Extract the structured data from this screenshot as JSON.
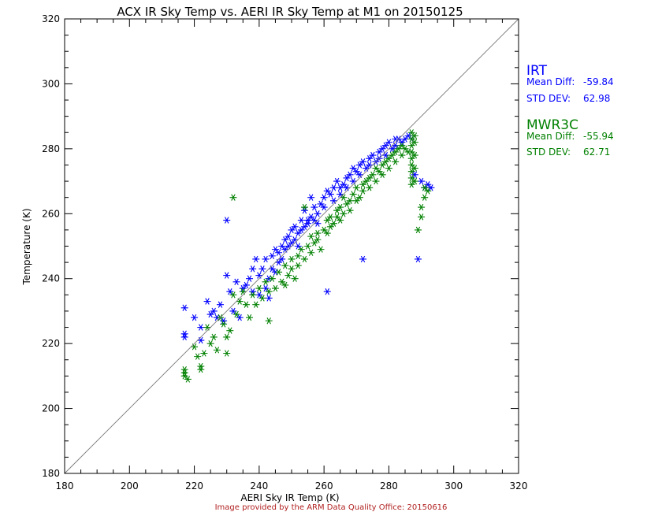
{
  "chart_data": {
    "type": "scatter",
    "title": "ACX IR Sky Temp vs. AERI IR Sky Temp at M1 on 20150125",
    "xlabel": "AERI Sky IR Temp (K)",
    "ylabel": "Temperature (K)",
    "xlim": [
      180,
      320
    ],
    "ylim": [
      180,
      320
    ],
    "xticks": [
      "180",
      "200",
      "220",
      "240",
      "260",
      "280",
      "300",
      "320"
    ],
    "yticks": [
      "180",
      "200",
      "220",
      "240",
      "260",
      "280",
      "300",
      "320"
    ],
    "reference_line": "y = x",
    "marker": "asterisk",
    "grid": false,
    "legend_position": "right",
    "series": [
      {
        "name": "IRT",
        "color": "#0000ff",
        "mean_diff_label": "Mean Diff:",
        "mean_diff": "-59.84",
        "std_dev_label": "STD DEV:",
        "std_dev": "62.98",
        "points": [
          [
            217,
            231
          ],
          [
            217,
            223
          ],
          [
            217,
            222
          ],
          [
            220,
            228
          ],
          [
            222,
            225
          ],
          [
            222,
            221
          ],
          [
            224,
            233
          ],
          [
            225,
            229
          ],
          [
            226,
            230
          ],
          [
            227,
            228
          ],
          [
            228,
            232
          ],
          [
            229,
            227
          ],
          [
            230,
            258
          ],
          [
            230,
            241
          ],
          [
            231,
            236
          ],
          [
            232,
            230
          ],
          [
            233,
            239
          ],
          [
            234,
            228
          ],
          [
            235,
            237
          ],
          [
            236,
            238
          ],
          [
            237,
            240
          ],
          [
            238,
            243
          ],
          [
            238,
            236
          ],
          [
            239,
            246
          ],
          [
            240,
            241
          ],
          [
            240,
            235
          ],
          [
            241,
            243
          ],
          [
            242,
            237
          ],
          [
            242,
            246
          ],
          [
            243,
            234
          ],
          [
            243,
            240
          ],
          [
            244,
            247
          ],
          [
            244,
            243
          ],
          [
            245,
            249
          ],
          [
            245,
            242
          ],
          [
            246,
            248
          ],
          [
            246,
            245
          ],
          [
            247,
            250
          ],
          [
            247,
            246
          ],
          [
            248,
            252
          ],
          [
            248,
            249
          ],
          [
            249,
            253
          ],
          [
            249,
            250
          ],
          [
            250,
            255
          ],
          [
            250,
            251
          ],
          [
            251,
            252
          ],
          [
            251,
            256
          ],
          [
            252,
            254
          ],
          [
            252,
            250
          ],
          [
            253,
            258
          ],
          [
            253,
            255
          ],
          [
            254,
            256
          ],
          [
            254,
            261
          ],
          [
            255,
            258
          ],
          [
            255,
            257
          ],
          [
            256,
            259
          ],
          [
            256,
            265
          ],
          [
            257,
            258
          ],
          [
            257,
            262
          ],
          [
            258,
            260
          ],
          [
            258,
            257
          ],
          [
            259,
            263
          ],
          [
            260,
            262
          ],
          [
            260,
            265
          ],
          [
            261,
            236
          ],
          [
            261,
            267
          ],
          [
            262,
            266
          ],
          [
            263,
            268
          ],
          [
            263,
            264
          ],
          [
            264,
            270
          ],
          [
            265,
            268
          ],
          [
            265,
            266
          ],
          [
            266,
            269
          ],
          [
            267,
            271
          ],
          [
            267,
            268
          ],
          [
            268,
            272
          ],
          [
            269,
            270
          ],
          [
            269,
            274
          ],
          [
            270,
            273
          ],
          [
            271,
            275
          ],
          [
            271,
            272
          ],
          [
            272,
            246
          ],
          [
            272,
            276
          ],
          [
            273,
            274
          ],
          [
            274,
            277
          ],
          [
            274,
            275
          ],
          [
            275,
            278
          ],
          [
            276,
            276
          ],
          [
            277,
            279
          ],
          [
            277,
            277
          ],
          [
            278,
            280
          ],
          [
            279,
            278
          ],
          [
            279,
            281
          ],
          [
            280,
            282
          ],
          [
            281,
            280
          ],
          [
            282,
            283
          ],
          [
            282,
            281
          ],
          [
            283,
            283
          ],
          [
            284,
            282
          ],
          [
            285,
            283
          ],
          [
            286,
            284
          ],
          [
            287,
            283
          ],
          [
            288,
            272
          ],
          [
            289,
            246
          ],
          [
            291,
            268
          ],
          [
            292,
            269
          ],
          [
            293,
            268
          ],
          [
            290,
            270
          ]
        ]
      },
      {
        "name": "MWR3C",
        "color": "#008000",
        "mean_diff_label": "Mean Diff:",
        "mean_diff": "-55.94",
        "std_dev_label": "STD DEV:",
        "std_dev": "62.71",
        "points": [
          [
            217,
            212
          ],
          [
            217,
            210
          ],
          [
            217,
            211
          ],
          [
            218,
            209
          ],
          [
            220,
            219
          ],
          [
            221,
            216
          ],
          [
            222,
            213
          ],
          [
            222,
            212
          ],
          [
            223,
            217
          ],
          [
            224,
            225
          ],
          [
            225,
            220
          ],
          [
            226,
            222
          ],
          [
            227,
            218
          ],
          [
            228,
            228
          ],
          [
            229,
            226
          ],
          [
            230,
            217
          ],
          [
            230,
            222
          ],
          [
            231,
            224
          ],
          [
            232,
            265
          ],
          [
            232,
            235
          ],
          [
            233,
            229
          ],
          [
            234,
            233
          ],
          [
            235,
            236
          ],
          [
            236,
            232
          ],
          [
            237,
            228
          ],
          [
            238,
            235
          ],
          [
            239,
            232
          ],
          [
            240,
            237
          ],
          [
            241,
            234
          ],
          [
            242,
            239
          ],
          [
            243,
            227
          ],
          [
            243,
            236
          ],
          [
            244,
            240
          ],
          [
            245,
            237
          ],
          [
            246,
            242
          ],
          [
            247,
            239
          ],
          [
            248,
            238
          ],
          [
            248,
            244
          ],
          [
            249,
            241
          ],
          [
            250,
            246
          ],
          [
            250,
            243
          ],
          [
            251,
            240
          ],
          [
            252,
            247
          ],
          [
            252,
            244
          ],
          [
            253,
            249
          ],
          [
            254,
            246
          ],
          [
            254,
            262
          ],
          [
            255,
            250
          ],
          [
            256,
            248
          ],
          [
            256,
            253
          ],
          [
            257,
            251
          ],
          [
            258,
            254
          ],
          [
            258,
            252
          ],
          [
            259,
            249
          ],
          [
            260,
            255
          ],
          [
            261,
            258
          ],
          [
            261,
            254
          ],
          [
            262,
            259
          ],
          [
            262,
            256
          ],
          [
            263,
            257
          ],
          [
            264,
            261
          ],
          [
            264,
            259
          ],
          [
            265,
            262
          ],
          [
            265,
            258
          ],
          [
            266,
            260
          ],
          [
            266,
            265
          ],
          [
            267,
            263
          ],
          [
            268,
            264
          ],
          [
            268,
            261
          ],
          [
            269,
            266
          ],
          [
            270,
            264
          ],
          [
            270,
            268
          ],
          [
            271,
            265
          ],
          [
            272,
            269
          ],
          [
            272,
            267
          ],
          [
            273,
            270
          ],
          [
            274,
            268
          ],
          [
            274,
            271
          ],
          [
            275,
            272
          ],
          [
            276,
            270
          ],
          [
            276,
            274
          ],
          [
            277,
            273
          ],
          [
            278,
            275
          ],
          [
            278,
            272
          ],
          [
            279,
            276
          ],
          [
            280,
            277
          ],
          [
            280,
            274
          ],
          [
            281,
            278
          ],
          [
            282,
            279
          ],
          [
            282,
            276
          ],
          [
            283,
            280
          ],
          [
            284,
            278
          ],
          [
            284,
            281
          ],
          [
            285,
            280
          ],
          [
            286,
            279
          ],
          [
            287,
            285
          ],
          [
            287,
            283
          ],
          [
            287,
            281
          ],
          [
            287,
            279
          ],
          [
            287,
            277
          ],
          [
            287,
            275
          ],
          [
            287,
            273
          ],
          [
            287,
            271
          ],
          [
            287,
            269
          ],
          [
            288,
            284
          ],
          [
            288,
            282
          ],
          [
            288,
            278
          ],
          [
            288,
            274
          ],
          [
            288,
            270
          ],
          [
            289,
            255
          ],
          [
            290,
            259
          ],
          [
            290,
            262
          ],
          [
            291,
            265
          ],
          [
            291,
            268
          ],
          [
            292,
            267
          ]
        ]
      }
    ]
  },
  "credit": "Image provided by the ARM Data Quality Office: 20150616"
}
